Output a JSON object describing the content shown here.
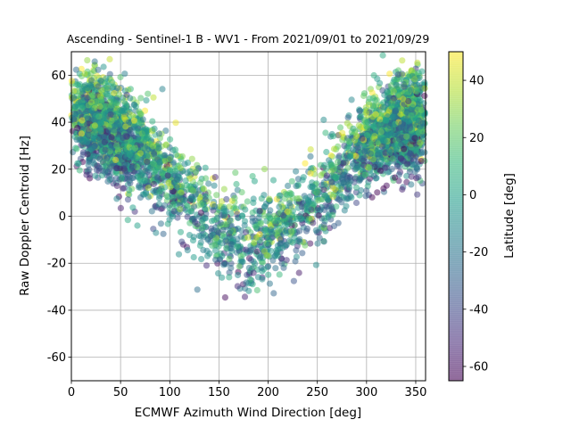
{
  "chart_data": {
    "type": "scatter",
    "title": "Ascending - Sentinel-1 B - WV1 - From 2021/09/01 to 2021/09/29",
    "xlabel": "ECMWF Azimuth Wind Direction [deg]",
    "ylabel": "Raw Doppler Centroid [Hz]",
    "xlim": [
      0,
      360
    ],
    "ylim": [
      -70,
      70
    ],
    "xticks": [
      0,
      50,
      100,
      150,
      200,
      250,
      300,
      350
    ],
    "yticks": [
      -60,
      -40,
      -20,
      0,
      20,
      40,
      60
    ],
    "grid": true,
    "colorbar": {
      "label": "Latitude [deg]",
      "range": [
        -65,
        50
      ],
      "ticks": [
        -60,
        -40,
        -20,
        0,
        20,
        40
      ],
      "colormap": "viridis",
      "alpha": 0.6
    },
    "trend": {
      "description": "V-shaped relation: Doppler centroid falls from ~45 Hz near 0 deg to ~-10 Hz near 190 deg and rises back to ~40 Hz near 350 deg",
      "x": [
        0,
        25,
        50,
        75,
        100,
        125,
        150,
        175,
        200,
        225,
        250,
        275,
        300,
        325,
        350,
        360
      ],
      "y": [
        45,
        42,
        35,
        27,
        15,
        6,
        -5,
        -10,
        -9,
        0,
        8,
        18,
        30,
        38,
        42,
        43
      ]
    },
    "n_points": 4200
  }
}
